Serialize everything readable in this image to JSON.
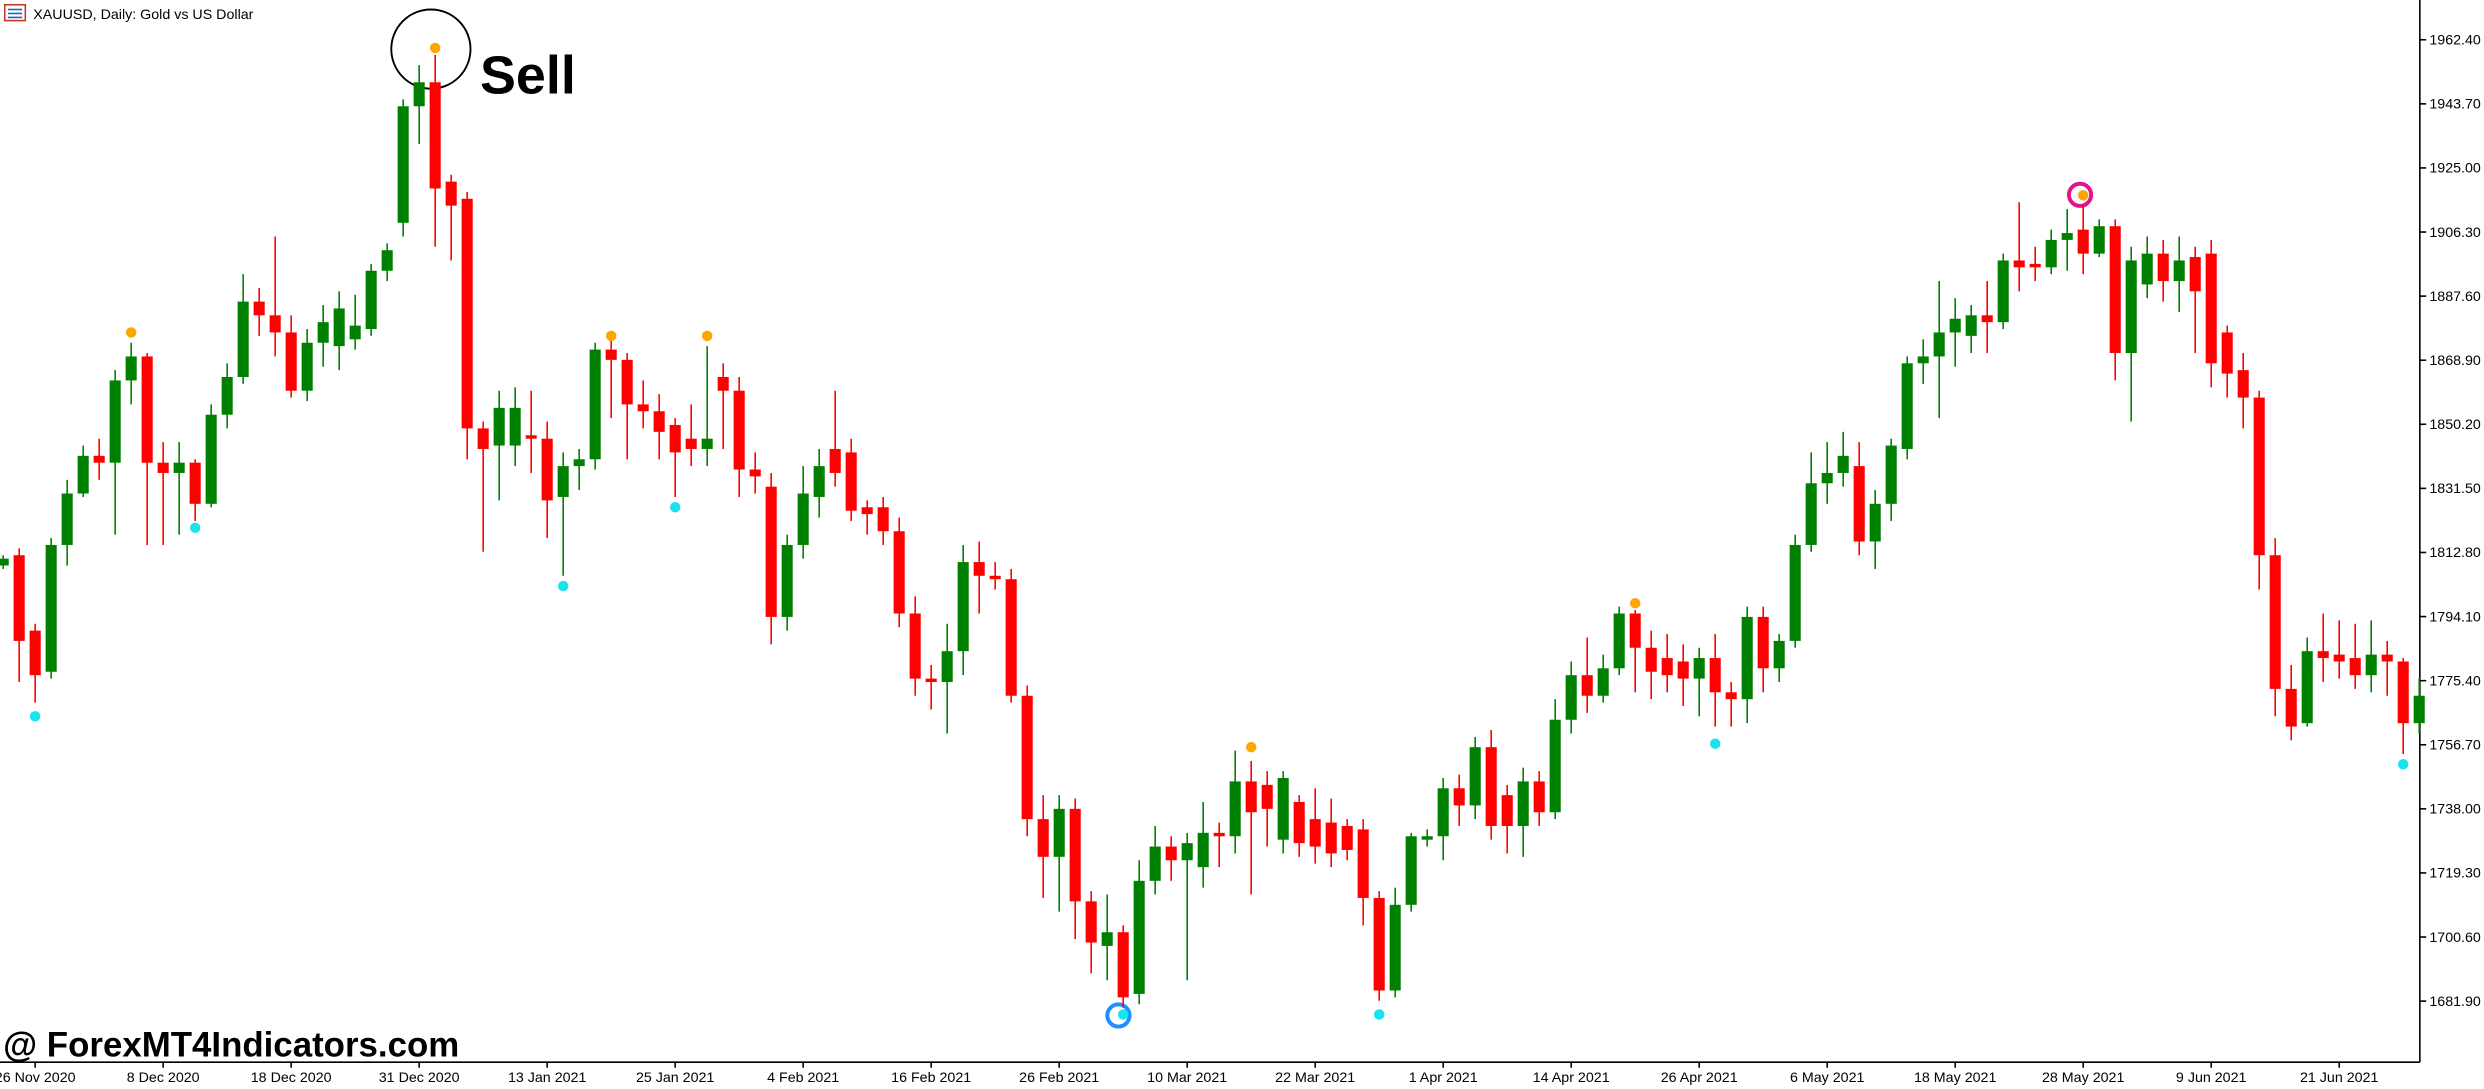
{
  "chart_data": {
    "type": "candlestick",
    "title": "XAUUSD, Daily:  Gold vs US Dollar",
    "annotation": "Sell",
    "watermark": "@ ForexMT4Indicators.com",
    "up_color": "#008000",
    "down_color": "#ff0000",
    "ylim": [
      1664.3,
      1974.0
    ],
    "yticks": [
      {
        "value": 1962.4,
        "label": "1962.40"
      },
      {
        "value": 1943.7,
        "label": "1943.70"
      },
      {
        "value": 1925.0,
        "label": "1925.00"
      },
      {
        "value": 1906.3,
        "label": "1906.30"
      },
      {
        "value": 1887.6,
        "label": "1887.60"
      },
      {
        "value": 1868.9,
        "label": "1868.90"
      },
      {
        "value": 1850.2,
        "label": "1850.20"
      },
      {
        "value": 1831.5,
        "label": "1831.50"
      },
      {
        "value": 1812.8,
        "label": "1812.80"
      },
      {
        "value": 1794.1,
        "label": "1794.10"
      },
      {
        "value": 1775.4,
        "label": "1775.40"
      },
      {
        "value": 1756.7,
        "label": "1756.70"
      },
      {
        "value": 1738.0,
        "label": "1738.00"
      },
      {
        "value": 1719.3,
        "label": "1719.30"
      },
      {
        "value": 1700.6,
        "label": "1700.60"
      },
      {
        "value": 1681.9,
        "label": "1681.90"
      }
    ],
    "categories": [
      null,
      null,
      "26 Nov 2020",
      null,
      null,
      null,
      null,
      null,
      null,
      null,
      "8 Dec 2020",
      null,
      null,
      null,
      null,
      null,
      null,
      null,
      "18 Dec 2020",
      null,
      null,
      null,
      null,
      null,
      null,
      null,
      "31 Dec 2020",
      null,
      null,
      null,
      null,
      null,
      null,
      null,
      "13 Jan 2021",
      null,
      null,
      null,
      null,
      null,
      null,
      null,
      "25 Jan 2021",
      null,
      null,
      null,
      null,
      null,
      null,
      null,
      "4 Feb 2021",
      null,
      null,
      null,
      null,
      null,
      null,
      null,
      "16 Feb 2021",
      null,
      null,
      null,
      null,
      null,
      null,
      null,
      "26 Feb 2021",
      null,
      null,
      null,
      null,
      null,
      null,
      null,
      "10 Mar 2021",
      null,
      null,
      null,
      null,
      null,
      null,
      null,
      "22 Mar 2021",
      null,
      null,
      null,
      null,
      null,
      null,
      null,
      "1 Apr 2021",
      null,
      null,
      null,
      null,
      null,
      null,
      null,
      "14 Apr 2021",
      null,
      null,
      null,
      null,
      null,
      null,
      null,
      "26 Apr 2021",
      null,
      null,
      null,
      null,
      null,
      null,
      null,
      "6 May 2021",
      null,
      null,
      null,
      null,
      null,
      null,
      null,
      "18 May 2021",
      null,
      null,
      null,
      null,
      null,
      null,
      null,
      "28 May 2021",
      null,
      null,
      null,
      null,
      null,
      null,
      null,
      "9 Jun 2021",
      null,
      null,
      null,
      null,
      null,
      null,
      null,
      "21 Jun 2021",
      null,
      null,
      null,
      null,
      null
    ],
    "open": [
      1809,
      1812,
      1790,
      1778,
      1815,
      1830,
      1841,
      1839,
      1863,
      1870,
      1839,
      1836,
      1839,
      1827,
      1853,
      1864,
      1886,
      1882,
      1877,
      1860,
      1874,
      1873,
      1875,
      1878,
      1895,
      1909,
      1943,
      1950,
      1921,
      1916,
      1849,
      1844,
      1844,
      1847,
      1846,
      1829,
      1838,
      1840,
      1872,
      1869,
      1856,
      1854,
      1850,
      1846,
      1843,
      1864,
      1860,
      1837,
      1832,
      1794,
      1815,
      1829,
      1843,
      1842,
      1826,
      1826,
      1819,
      1795,
      1776,
      1775,
      1784,
      1810,
      1806,
      1805,
      1771,
      1735,
      1724,
      1738,
      1711,
      1698,
      1702,
      1684,
      1717,
      1727,
      1723,
      1721,
      1731,
      1730,
      1746,
      1745,
      1729,
      1740,
      1735,
      1734,
      1733,
      1732,
      1712,
      1685,
      1710,
      1729,
      1730,
      1744,
      1739,
      1756,
      1742,
      1733,
      1746,
      1737,
      1764,
      1777,
      1771,
      1779,
      1795,
      1785,
      1782,
      1781,
      1776,
      1782,
      1772,
      1770,
      1794,
      1779,
      1787,
      1815,
      1833,
      1836,
      1838,
      1816,
      1827,
      1843,
      1868,
      1870,
      1877,
      1876,
      1882,
      1880,
      1898,
      1897,
      1896,
      1904,
      1907,
      1900,
      1908,
      1871,
      1891,
      1900,
      1892,
      1899,
      1900,
      1877,
      1866,
      1858,
      1812,
      1773,
      1763,
      1784,
      1783,
      1782,
      1777,
      1783,
      1781,
      1763
    ],
    "high": [
      1812,
      1814,
      1792,
      1817,
      1834,
      1844,
      1846,
      1866,
      1874,
      1871,
      1845,
      1845,
      1840,
      1856,
      1868,
      1894,
      1890,
      1905,
      1882,
      1878,
      1885,
      1889,
      1888,
      1897,
      1903,
      1945,
      1955,
      1958,
      1923,
      1918,
      1851,
      1860,
      1861,
      1860,
      1851,
      1842,
      1843,
      1874,
      1876,
      1871,
      1863,
      1859,
      1852,
      1856,
      1873,
      1868,
      1864,
      1842,
      1836,
      1818,
      1838,
      1843,
      1860,
      1846,
      1828,
      1829,
      1823,
      1800,
      1780,
      1792,
      1815,
      1816,
      1810,
      1808,
      1774,
      1742,
      1742,
      1741,
      1714,
      1713,
      1704,
      1723,
      1733,
      1730,
      1731,
      1740,
      1734,
      1755,
      1752,
      1749,
      1749,
      1742,
      1744,
      1741,
      1735,
      1735,
      1714,
      1715,
      1731,
      1732,
      1747,
      1748,
      1759,
      1761,
      1745,
      1750,
      1749,
      1770,
      1781,
      1788,
      1783,
      1797,
      1796,
      1790,
      1789,
      1786,
      1785,
      1789,
      1775,
      1797,
      1797,
      1789,
      1818,
      1842,
      1845,
      1848,
      1845,
      1831,
      1846,
      1870,
      1875,
      1892,
      1887,
      1885,
      1892,
      1900,
      1915,
      1902,
      1907,
      1913,
      1914,
      1910,
      1910,
      1902,
      1905,
      1904,
      1905,
      1902,
      1904,
      1879,
      1871,
      1860,
      1817,
      1780,
      1788,
      1795,
      1793,
      1792,
      1793,
      1787,
      1782,
      1776
    ],
    "low": [
      1808,
      1775,
      1769,
      1776,
      1809,
      1829,
      1834,
      1818,
      1856,
      1815,
      1815,
      1818,
      1822,
      1826,
      1849,
      1862,
      1876,
      1870,
      1858,
      1857,
      1867,
      1866,
      1872,
      1876,
      1892,
      1905,
      1932,
      1902,
      1898,
      1840,
      1813,
      1828,
      1838,
      1836,
      1817,
      1806,
      1831,
      1837,
      1852,
      1840,
      1849,
      1840,
      1829,
      1838,
      1838,
      1843,
      1829,
      1830,
      1786,
      1790,
      1811,
      1823,
      1832,
      1822,
      1818,
      1815,
      1791,
      1771,
      1767,
      1760,
      1777,
      1795,
      1802,
      1769,
      1730,
      1712,
      1708,
      1700,
      1690,
      1688,
      1680,
      1681,
      1713,
      1717,
      1688,
      1715,
      1721,
      1725,
      1713,
      1727,
      1725,
      1724,
      1722,
      1721,
      1723,
      1704,
      1682,
      1683,
      1708,
      1727,
      1723,
      1733,
      1735,
      1729,
      1725,
      1724,
      1733,
      1735,
      1760,
      1766,
      1769,
      1777,
      1772,
      1770,
      1772,
      1768,
      1765,
      1762,
      1762,
      1763,
      1772,
      1775,
      1785,
      1813,
      1827,
      1832,
      1812,
      1808,
      1822,
      1840,
      1862,
      1852,
      1867,
      1871,
      1871,
      1878,
      1889,
      1892,
      1894,
      1895,
      1894,
      1899,
      1863,
      1851,
      1887,
      1886,
      1883,
      1871,
      1861,
      1858,
      1849,
      1802,
      1765,
      1758,
      1762,
      1775,
      1776,
      1773,
      1772,
      1771,
      1754,
      1760
    ],
    "close": [
      1811,
      1787,
      1777,
      1815,
      1830,
      1841,
      1839,
      1863,
      1870,
      1839,
      1836,
      1839,
      1827,
      1853,
      1864,
      1886,
      1882,
      1877,
      1860,
      1874,
      1880,
      1884,
      1879,
      1895,
      1901,
      1943,
      1950,
      1919,
      1914,
      1849,
      1843,
      1855,
      1855,
      1846,
      1828,
      1838,
      1840,
      1872,
      1869,
      1856,
      1854,
      1848,
      1842,
      1843,
      1846,
      1860,
      1837,
      1835,
      1794,
      1815,
      1830,
      1838,
      1836,
      1825,
      1824,
      1819,
      1795,
      1776,
      1775,
      1784,
      1810,
      1806,
      1805,
      1771,
      1735,
      1724,
      1738,
      1711,
      1699,
      1702,
      1683,
      1717,
      1727,
      1723,
      1728,
      1731,
      1730,
      1746,
      1737,
      1738,
      1747,
      1728,
      1727,
      1725,
      1726,
      1712,
      1685,
      1710,
      1730,
      1730,
      1744,
      1739,
      1756,
      1733,
      1733,
      1746,
      1737,
      1764,
      1777,
      1771,
      1779,
      1795,
      1785,
      1778,
      1777,
      1776,
      1782,
      1772,
      1770,
      1794,
      1779,
      1787,
      1815,
      1833,
      1836,
      1841,
      1816,
      1827,
      1844,
      1868,
      1870,
      1877,
      1881,
      1882,
      1880,
      1898,
      1896,
      1896,
      1904,
      1906,
      1900,
      1908,
      1871,
      1898,
      1900,
      1892,
      1898,
      1889,
      1868,
      1865,
      1858,
      1812,
      1773,
      1762,
      1784,
      1782,
      1781,
      1777,
      1783,
      1781,
      1763,
      1771
    ],
    "sell_signals": {
      "color": "#ffa500",
      "values": [
        null,
        null,
        null,
        null,
        null,
        null,
        null,
        null,
        1877,
        null,
        null,
        null,
        null,
        null,
        null,
        null,
        null,
        null,
        null,
        null,
        null,
        null,
        null,
        null,
        null,
        null,
        null,
        1960,
        null,
        null,
        null,
        null,
        null,
        null,
        null,
        null,
        null,
        null,
        1876,
        null,
        null,
        null,
        null,
        null,
        1876,
        null,
        null,
        null,
        null,
        null,
        null,
        null,
        null,
        null,
        null,
        null,
        null,
        null,
        null,
        null,
        null,
        null,
        null,
        null,
        null,
        null,
        null,
        null,
        null,
        null,
        null,
        null,
        null,
        null,
        null,
        null,
        null,
        null,
        1756,
        null,
        null,
        null,
        null,
        null,
        null,
        null,
        null,
        null,
        null,
        null,
        null,
        null,
        null,
        null,
        null,
        null,
        null,
        null,
        null,
        null,
        null,
        null,
        1798,
        null,
        null,
        null,
        null,
        null,
        null,
        null,
        null,
        null,
        null,
        null,
        null,
        null,
        null,
        null,
        null,
        null,
        null,
        null,
        null,
        null,
        null,
        null,
        null,
        null,
        null,
        null,
        1917,
        null,
        null,
        null,
        null,
        null,
        null,
        null,
        null,
        null,
        null,
        null,
        null,
        null,
        null,
        null,
        null,
        null,
        null,
        null,
        null,
        null
      ]
    },
    "buy_signals": {
      "color": "#19e3ee",
      "values": [
        null,
        null,
        1765,
        null,
        null,
        null,
        null,
        null,
        null,
        null,
        null,
        null,
        1820,
        null,
        null,
        null,
        null,
        null,
        null,
        null,
        null,
        null,
        null,
        null,
        null,
        null,
        null,
        null,
        null,
        null,
        null,
        null,
        null,
        null,
        null,
        1803,
        null,
        null,
        null,
        null,
        null,
        null,
        1826,
        null,
        null,
        null,
        null,
        null,
        null,
        null,
        null,
        null,
        null,
        null,
        null,
        null,
        null,
        null,
        null,
        null,
        null,
        null,
        null,
        null,
        null,
        null,
        null,
        null,
        null,
        null,
        1678,
        null,
        null,
        null,
        null,
        null,
        null,
        null,
        null,
        null,
        null,
        null,
        null,
        null,
        null,
        null,
        1678,
        null,
        null,
        null,
        null,
        null,
        null,
        null,
        null,
        null,
        null,
        null,
        null,
        null,
        null,
        null,
        null,
        null,
        null,
        null,
        null,
        1757,
        null,
        null,
        null,
        null,
        null,
        null,
        null,
        null,
        null,
        null,
        null,
        null,
        null,
        null,
        null,
        null,
        null,
        null,
        null,
        null,
        null,
        null,
        null,
        null,
        null,
        null,
        null,
        null,
        null,
        null,
        null,
        null,
        null,
        null,
        null,
        null,
        null,
        null,
        null,
        null,
        null,
        null,
        1751,
        null
      ]
    }
  }
}
